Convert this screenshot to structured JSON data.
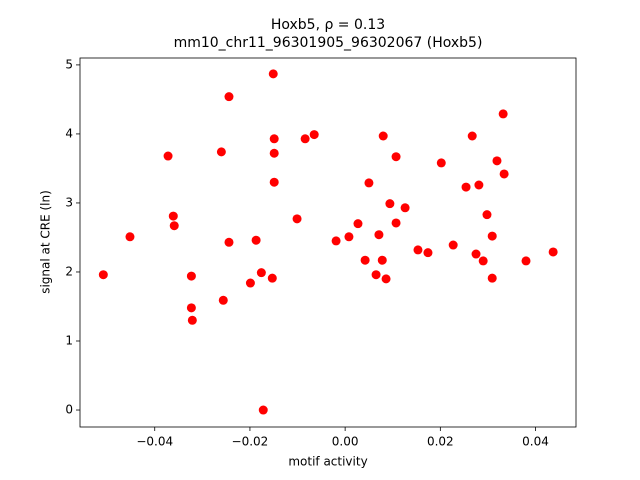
{
  "chart_data": {
    "type": "scatter",
    "title": "Hoxb5, ρ = 0.13",
    "subtitle": "mm10_chr11_96301905_96302067 (Hoxb5)",
    "x_label": "motif activity",
    "y_label": "signal at CRE (ln)",
    "color": "#ff0000",
    "xlim": [
      -0.0557,
      0.0485
    ],
    "ylim": [
      -0.246,
      5.1
    ],
    "xticks": [
      {
        "value": -0.04,
        "label": "−0.04"
      },
      {
        "value": -0.02,
        "label": "−0.02"
      },
      {
        "value": 0,
        "label": "0.00"
      },
      {
        "value": 0.02,
        "label": "0.02"
      },
      {
        "value": 0.04,
        "label": "0.04"
      }
    ],
    "yticks": [
      0,
      1,
      2,
      3,
      4,
      5
    ],
    "x": [
      -0.0508,
      -0.0452,
      -0.0372,
      -0.0361,
      -0.0359,
      -0.0323,
      -0.0323,
      -0.0321,
      -0.026,
      -0.0256,
      -0.0244,
      -0.0244,
      -0.0187,
      -0.0176,
      -0.0172,
      -0.0199,
      -0.0153,
      -0.0151,
      -0.0149,
      -0.0149,
      -0.0149,
      -0.0101,
      -0.0084,
      -0.0065,
      -0.0019,
      0.0008,
      0.0027,
      0.0042,
      0.005,
      0.0065,
      0.0071,
      0.0078,
      0.008,
      0.0086,
      0.0094,
      0.0107,
      0.0107,
      0.0126,
      0.0153,
      0.0174,
      0.0202,
      0.0227,
      0.0254,
      0.0267,
      0.0275,
      0.0281,
      0.029,
      0.0298,
      0.0309,
      0.0309,
      0.0319,
      0.0332,
      0.0334,
      0.038,
      0.0437
    ],
    "values": [
      1.96,
      2.51,
      3.68,
      2.81,
      2.67,
      1.94,
      1.48,
      1.3,
      3.74,
      1.59,
      4.54,
      2.43,
      2.46,
      1.99,
      0,
      1.84,
      1.91,
      4.87,
      3.93,
      3.72,
      3.3,
      2.77,
      3.93,
      3.99,
      2.45,
      2.51,
      2.7,
      2.17,
      3.29,
      1.96,
      2.54,
      2.17,
      3.97,
      1.9,
      2.99,
      3.67,
      2.71,
      2.93,
      2.32,
      2.28,
      3.58,
      2.39,
      3.23,
      3.97,
      2.26,
      3.26,
      2.16,
      2.83,
      2.52,
      1.91,
      3.61,
      4.29,
      3.42,
      2.16,
      2.29
    ]
  }
}
